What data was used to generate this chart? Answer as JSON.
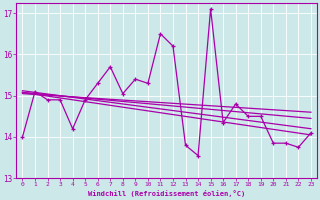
{
  "xlabel": "Windchill (Refroidissement éolien,°C)",
  "background_color": "#cce8e8",
  "line_color": "#aa00aa",
  "xlim": [
    -0.5,
    23.5
  ],
  "ylim": [
    13.0,
    17.25
  ],
  "yticks": [
    13,
    14,
    15,
    16,
    17
  ],
  "xticks": [
    0,
    1,
    2,
    3,
    4,
    5,
    6,
    7,
    8,
    9,
    10,
    11,
    12,
    13,
    14,
    15,
    16,
    17,
    18,
    19,
    20,
    21,
    22,
    23
  ],
  "series1_x": [
    0,
    1,
    2,
    3,
    4,
    5,
    6,
    7,
    8,
    9,
    10,
    11,
    12,
    13,
    14,
    15,
    16,
    17,
    18,
    19,
    20,
    21,
    22,
    23
  ],
  "series1_y": [
    14.0,
    15.1,
    14.9,
    14.9,
    14.2,
    14.9,
    15.3,
    15.7,
    15.05,
    15.4,
    15.3,
    16.5,
    16.2,
    13.8,
    13.55,
    17.1,
    14.35,
    14.8,
    14.5,
    14.5,
    13.85,
    13.85,
    13.75,
    14.1
  ],
  "reg_lines": [
    {
      "x0": 0,
      "y0": 15.08,
      "x1": 23,
      "y1": 14.05
    },
    {
      "x0": 0,
      "y0": 15.12,
      "x1": 23,
      "y1": 14.2
    },
    {
      "x0": 0,
      "y0": 15.08,
      "x1": 23,
      "y1": 14.45
    },
    {
      "x0": 0,
      "y0": 15.05,
      "x1": 23,
      "y1": 14.6
    }
  ]
}
